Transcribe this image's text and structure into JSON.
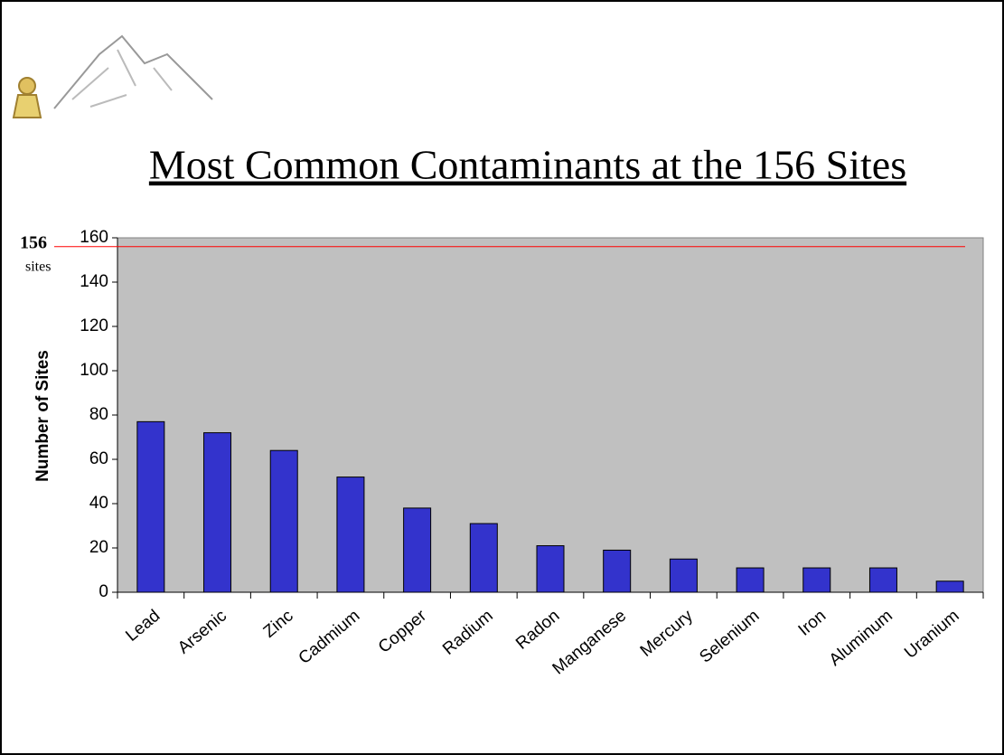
{
  "chart_data": {
    "type": "bar",
    "title": "Most Common Contaminants at the 156 Sites",
    "y_label": "Number of Sites",
    "categories": [
      "Lead",
      "Arsenic",
      "Zinc",
      "Cadmium",
      "Copper",
      "Radium",
      "Radon",
      "Manganese",
      "Mercury",
      "Selenium",
      "Iron",
      "Aluminum",
      "Uranium"
    ],
    "values": [
      77,
      72,
      64,
      52,
      38,
      31,
      21,
      19,
      15,
      11,
      11,
      11,
      5
    ],
    "color": "#3333cc",
    "ylim": [
      0,
      160
    ],
    "yticks": [
      0,
      20,
      40,
      60,
      80,
      100,
      120,
      140,
      160
    ],
    "reference_line": {
      "value": 156,
      "unit": "sites",
      "color": "#ff0000"
    }
  }
}
